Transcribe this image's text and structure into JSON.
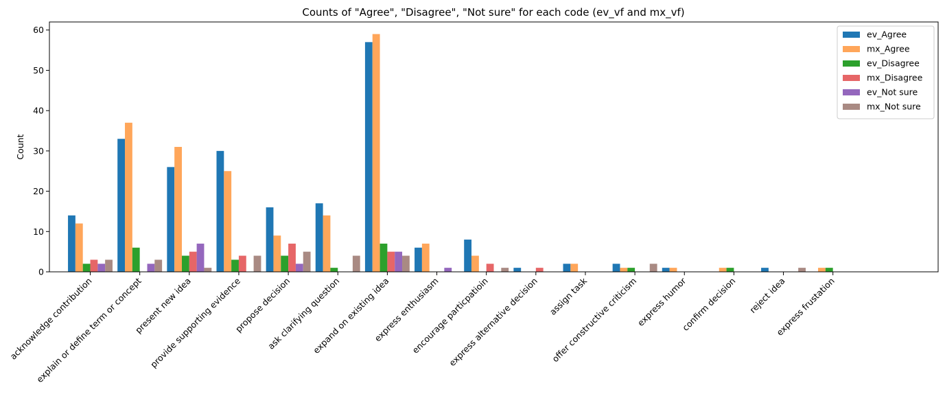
{
  "chart_data": {
    "type": "bar",
    "title": "Counts of \"Agree\", \"Disagree\", \"Not sure\" for each code (ev_vf and mx_vf)",
    "xlabel": "",
    "ylabel": "Count",
    "ylim": [
      0,
      62
    ],
    "yticks": [
      0,
      10,
      20,
      30,
      40,
      50,
      60
    ],
    "grid": false,
    "legend_position": "top-right",
    "categories": [
      "acknowledge contribution",
      "explain or define term or concept",
      "present new idea",
      "provide supporting evidence",
      "propose decision",
      "ask clarifying question",
      "expand on existing idea",
      "express enthusiasm",
      "encourage particpatioin",
      "express alternative decision",
      "assign task",
      "offer constructive criticism",
      "express humor",
      "confirm decision",
      "reject idea",
      "express frustation"
    ],
    "series": [
      {
        "name": "ev_Agree",
        "color": "#1f77b4",
        "values": [
          14,
          33,
          26,
          30,
          16,
          17,
          57,
          6,
          8,
          1,
          2,
          2,
          1,
          0,
          1,
          0
        ]
      },
      {
        "name": "mx_Agree",
        "color": "#ffa65a",
        "values": [
          12,
          37,
          31,
          25,
          9,
          14,
          59,
          7,
          4,
          0,
          2,
          1,
          1,
          1,
          0,
          1
        ]
      },
      {
        "name": "ev_Disagree",
        "color": "#2ca02c",
        "values": [
          2,
          6,
          4,
          3,
          4,
          1,
          7,
          0,
          0,
          0,
          0,
          1,
          0,
          1,
          0,
          1
        ]
      },
      {
        "name": "mx_Disagree",
        "color": "#e66667",
        "values": [
          3,
          0,
          5,
          4,
          7,
          0,
          5,
          0,
          2,
          1,
          0,
          0,
          0,
          0,
          0,
          0
        ]
      },
      {
        "name": "ev_Not sure",
        "color": "#9467bd",
        "values": [
          2,
          2,
          7,
          0,
          2,
          0,
          5,
          1,
          0,
          0,
          0,
          0,
          0,
          0,
          0,
          0
        ]
      },
      {
        "name": "mx_Not sure",
        "color": "#a98a83",
        "values": [
          3,
          3,
          1,
          4,
          5,
          4,
          4,
          0,
          1,
          0,
          0,
          2,
          0,
          0,
          1,
          0
        ]
      }
    ]
  }
}
